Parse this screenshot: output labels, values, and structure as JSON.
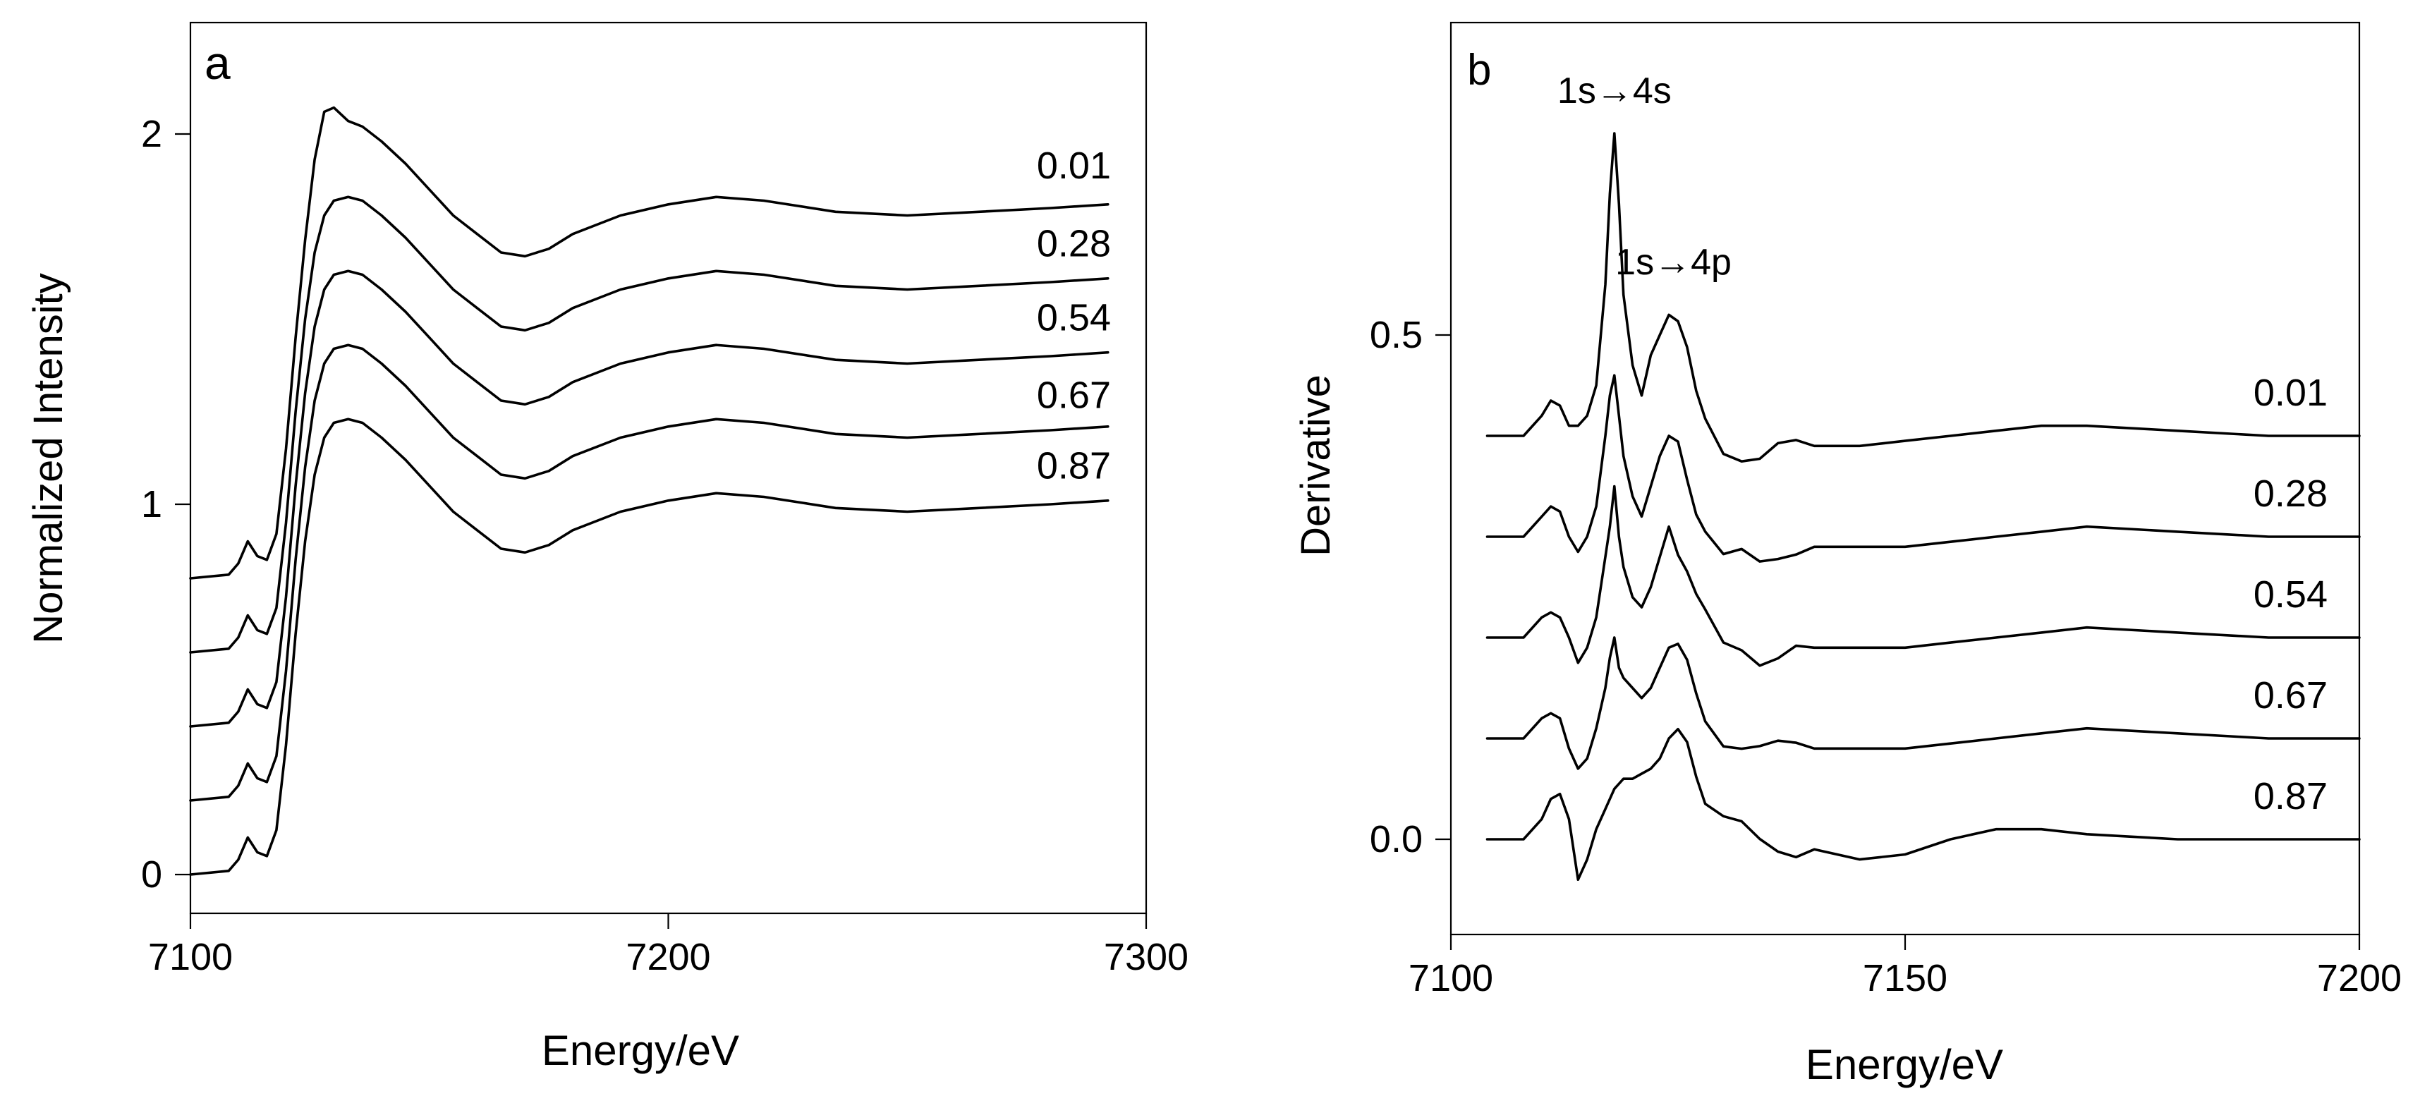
{
  "chart_data": [
    {
      "type": "line",
      "panel_label": "a",
      "xlabel": "Energy/eV",
      "ylabel": "Normalized Intensity",
      "xlim": [
        7100,
        7300
      ],
      "ylim": [
        -0.1,
        2.3
      ],
      "xticks": [
        7100,
        7200,
        7300
      ],
      "yticks": [
        0,
        1,
        2
      ],
      "xtick_labels": [
        "7100",
        "7200",
        "7300"
      ],
      "ytick_labels": [
        "0",
        "1",
        "2"
      ],
      "series": [
        {
          "name": "0.01",
          "offset": 0.8,
          "label_y": 1.88
        },
        {
          "name": "0.28",
          "offset": 0.6,
          "label_y": 1.67
        },
        {
          "name": "0.54",
          "offset": 0.4,
          "label_y": 1.47
        },
        {
          "name": "0.67",
          "offset": 0.2,
          "label_y": 1.26
        },
        {
          "name": "0.87",
          "offset": 0.0,
          "label_y": 1.07
        }
      ],
      "x": [
        7100,
        7108,
        7110,
        7112,
        7114,
        7116,
        7118,
        7120,
        7122,
        7124,
        7126,
        7128,
        7130,
        7133,
        7136,
        7140,
        7145,
        7150,
        7155,
        7160,
        7165,
        7170,
        7175,
        7180,
        7190,
        7200,
        7210,
        7220,
        7235,
        7250,
        7265,
        7280,
        7292
      ],
      "y_base": [
        0.0,
        0.01,
        0.04,
        0.1,
        0.06,
        0.05,
        0.12,
        0.35,
        0.65,
        0.9,
        1.08,
        1.18,
        1.22,
        1.23,
        1.22,
        1.18,
        1.12,
        1.05,
        0.98,
        0.93,
        0.88,
        0.87,
        0.89,
        0.93,
        0.98,
        1.01,
        1.03,
        1.02,
        0.99,
        0.98,
        0.99,
        1.0,
        1.01
      ]
    },
    {
      "type": "line",
      "panel_label": "b",
      "xlabel": "Energy/eV",
      "ylabel": "Derivative",
      "xlim": [
        7100,
        7200
      ],
      "ylim": [
        -0.1,
        0.8
      ],
      "xticks": [
        7100,
        7150,
        7200
      ],
      "yticks": [
        0.0,
        0.5
      ],
      "xtick_labels": [
        "7100",
        "7150",
        "7200"
      ],
      "ytick_labels": [
        "0.0",
        "0.5"
      ],
      "annotations": [
        {
          "text": "1s→4s",
          "x": 7118.0,
          "y": 0.73
        },
        {
          "text": "1s→4p",
          "x": 7124.5,
          "y": 0.56
        }
      ],
      "series": [
        {
          "name": "0.01",
          "offset": 0.4,
          "label_y": 0.43
        },
        {
          "name": "0.28",
          "offset": 0.3,
          "label_y": 0.33
        },
        {
          "name": "0.54",
          "offset": 0.2,
          "label_y": 0.23
        },
        {
          "name": "0.67",
          "offset": 0.1,
          "label_y": 0.13
        },
        {
          "name": "0.87",
          "offset": 0.0,
          "label_y": 0.03
        }
      ],
      "x": [
        7104,
        7108,
        7110,
        7111,
        7112,
        7113,
        7114,
        7115,
        7116,
        7117,
        7117.5,
        7118,
        7118.5,
        7119,
        7120,
        7121,
        7122,
        7123,
        7124,
        7125,
        7126,
        7127,
        7128,
        7130,
        7132,
        7134,
        7136,
        7138,
        7140,
        7145,
        7150,
        7155,
        7160,
        7165,
        7170,
        7180,
        7190,
        7200
      ],
      "series_y": [
        [
          0.4,
          0.4,
          0.42,
          0.435,
          0.43,
          0.41,
          0.41,
          0.42,
          0.45,
          0.55,
          0.64,
          0.7,
          0.63,
          0.54,
          0.47,
          0.44,
          0.48,
          0.5,
          0.52,
          0.51,
          0.48,
          0.44,
          0.42,
          0.39,
          0.38,
          0.375,
          0.385,
          0.39,
          0.39,
          0.39,
          0.395,
          0.4,
          0.405,
          0.41,
          0.41,
          0.405,
          0.4,
          0.4
        ],
        [
          0.3,
          0.3,
          0.32,
          0.33,
          0.325,
          0.3,
          0.285,
          0.3,
          0.33,
          0.4,
          0.44,
          0.46,
          0.42,
          0.38,
          0.34,
          0.32,
          0.35,
          0.38,
          0.4,
          0.39,
          0.36,
          0.33,
          0.31,
          0.28,
          0.28,
          0.27,
          0.28,
          0.29,
          0.29,
          0.29,
          0.29,
          0.295,
          0.3,
          0.305,
          0.31,
          0.305,
          0.3,
          0.3
        ],
        [
          0.2,
          0.2,
          0.22,
          0.225,
          0.22,
          0.2,
          0.175,
          0.19,
          0.22,
          0.28,
          0.31,
          0.35,
          0.3,
          0.27,
          0.24,
          0.23,
          0.25,
          0.28,
          0.31,
          0.29,
          0.27,
          0.24,
          0.22,
          0.19,
          0.19,
          0.18,
          0.185,
          0.19,
          0.19,
          0.19,
          0.19,
          0.195,
          0.2,
          0.205,
          0.21,
          0.205,
          0.2,
          0.2
        ],
        [
          0.1,
          0.1,
          0.12,
          0.125,
          0.12,
          0.09,
          0.07,
          0.08,
          0.11,
          0.15,
          0.18,
          0.2,
          0.17,
          0.16,
          0.15,
          0.14,
          0.15,
          0.17,
          0.19,
          0.19,
          0.17,
          0.14,
          0.12,
          0.1,
          0.095,
          0.09,
          0.09,
          0.09,
          0.09,
          0.09,
          0.09,
          0.095,
          0.1,
          0.105,
          0.11,
          0.105,
          0.1,
          0.1
        ],
        [
          0.0,
          0.0,
          0.02,
          0.04,
          0.045,
          0.02,
          -0.04,
          -0.02,
          0.01,
          0.03,
          0.04,
          0.05,
          0.055,
          0.06,
          0.06,
          0.065,
          0.07,
          0.08,
          0.1,
          0.105,
          0.1,
          0.07,
          0.04,
          0.02,
          0.01,
          -0.005,
          -0.01,
          -0.01,
          -0.01,
          -0.02,
          -0.015,
          0.0,
          0.01,
          0.01,
          0.005,
          0.0,
          0.0,
          0.0
        ]
      ]
    }
  ]
}
